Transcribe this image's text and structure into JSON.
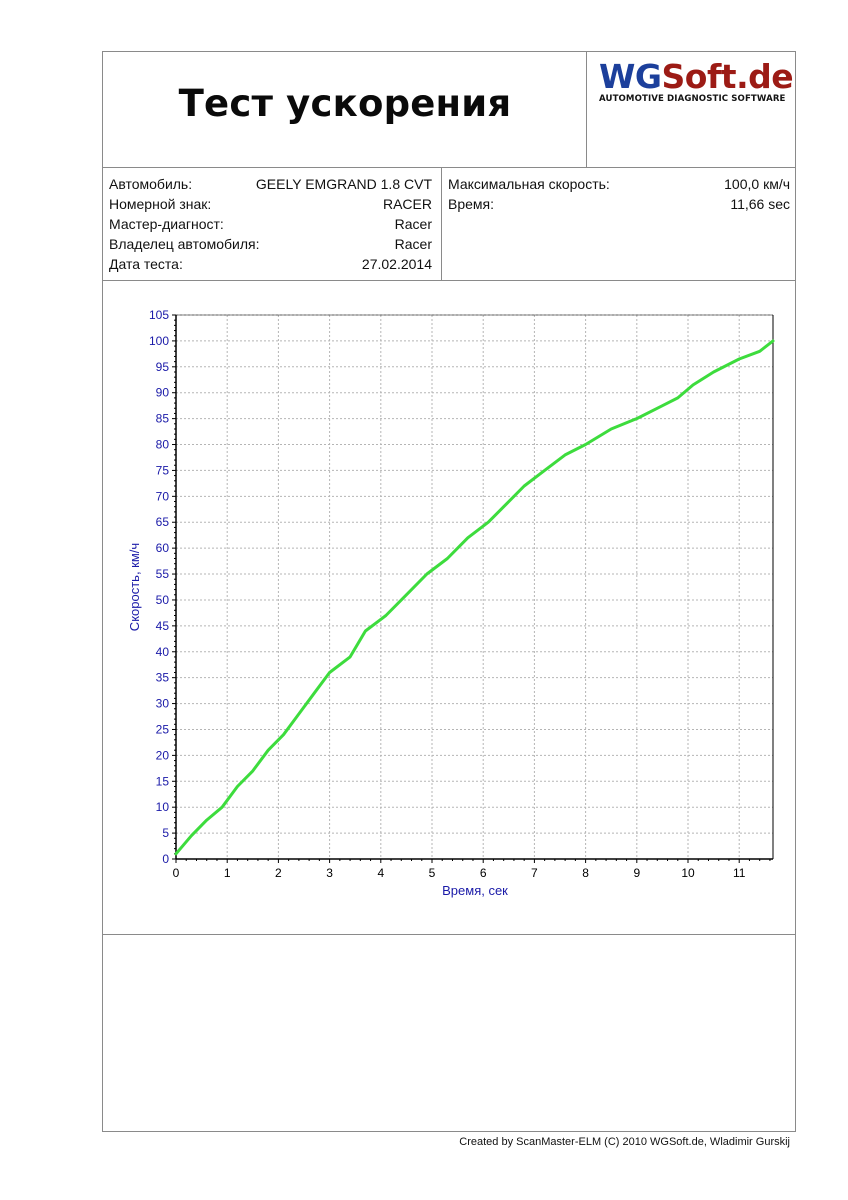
{
  "report": {
    "title": "Тест ускорения",
    "logo": {
      "wg": "WG",
      "rest": "Soft.de",
      "tagline": "AUTOMOTIVE DIAGNOSTIC SOFTWARE",
      "colors": {
        "wg": "#1c3f9b",
        "rest": "#9c1b15"
      }
    },
    "vehicle_info": [
      {
        "label": "Автомобиль:",
        "value": "GEELY EMGRAND 1.8 CVT"
      },
      {
        "label": "Номерной знак:",
        "value": "RACER"
      },
      {
        "label": "Мастер-диагност:",
        "value": "Racer"
      },
      {
        "label": "Владелец автомобиля:",
        "value": "Racer"
      },
      {
        "label": "Дата теста:",
        "value": "27.02.2014"
      }
    ],
    "result_info": [
      {
        "label": "Максимальная скорость:",
        "value": "100,0 км/ч"
      },
      {
        "label": "Время:",
        "value": "11,66 sec"
      }
    ],
    "footer": "Created by ScanMaster-ELM (C) 2010 WGSoft.de, Wladimir Gurskij"
  },
  "chart_data": {
    "type": "line",
    "title": "",
    "xlabel": "Время, сек",
    "ylabel": "Скорость, км/ч",
    "xlim": [
      0,
      11.66
    ],
    "ylim": [
      0,
      105
    ],
    "x_ticks": [
      "0",
      "1",
      "2",
      "3",
      "4",
      "5",
      "6",
      "7",
      "8",
      "9",
      "10",
      "11"
    ],
    "y_ticks": [
      "0",
      "5",
      "10",
      "15",
      "20",
      "25",
      "30",
      "35",
      "40",
      "45",
      "50",
      "55",
      "60",
      "65",
      "70",
      "75",
      "80",
      "85",
      "90",
      "95",
      "100",
      "105"
    ],
    "grid": true,
    "line_color": "#3ddc3d",
    "axis_text_color": "#1a1aa8",
    "series": [
      {
        "x": [
          0,
          0.3,
          0.6,
          0.9,
          1.2,
          1.5,
          1.8,
          2.1,
          2.4,
          2.7,
          3.0,
          3.4,
          3.7,
          4.1,
          4.5,
          4.9,
          5.3,
          5.7,
          6.1,
          6.4,
          6.8,
          7.2,
          7.6,
          8.0,
          8.5,
          9.0,
          9.5,
          9.8,
          10.1,
          10.5,
          11.0,
          11.4,
          11.66
        ],
        "y": [
          1,
          4.5,
          7.5,
          10,
          14,
          17,
          21,
          24,
          28,
          32,
          36,
          39,
          44,
          47,
          51,
          55,
          58,
          62,
          65,
          68,
          72,
          75,
          78,
          80,
          83,
          85,
          87.5,
          89,
          91.5,
          94,
          96.5,
          98,
          100
        ]
      }
    ]
  }
}
